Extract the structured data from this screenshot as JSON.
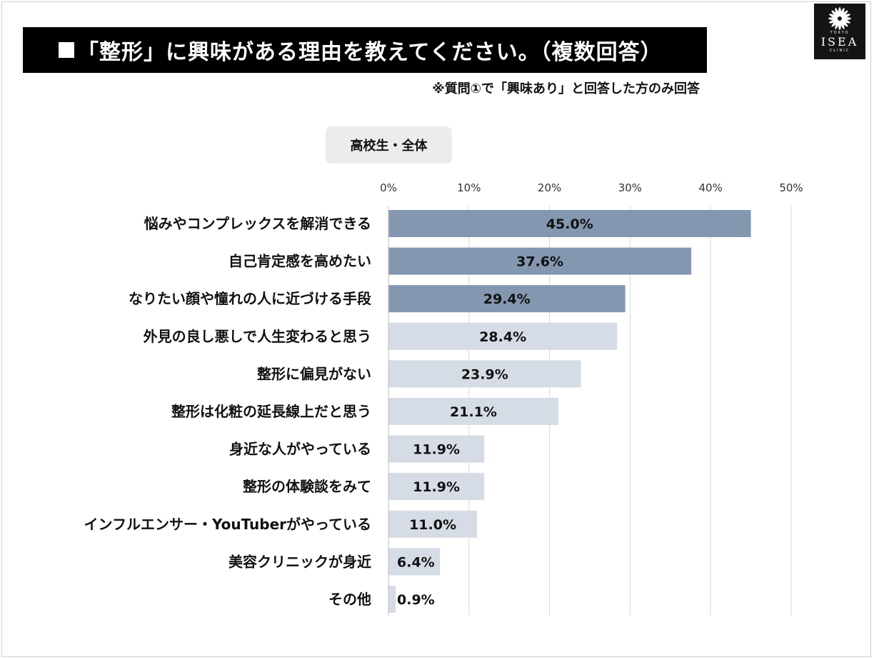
{
  "header": {
    "title": "「整形」に興味がある理由を教えてください。（複数回答）",
    "note": "※質問①で「興味あり」と回答した方のみ回答"
  },
  "logo": {
    "name": "ISEA",
    "top_text": "TOKYO",
    "bottom_text": "CLINIC"
  },
  "segment_label": "高校生・全体",
  "colors": {
    "highlight_bar": "#8497b0",
    "normal_bar": "#d6dce5",
    "grid": "#d9d9d9",
    "text": "#111111"
  },
  "chart_data": {
    "type": "bar",
    "orientation": "horizontal",
    "title": "「整形」に興味がある理由を教えてください。（複数回答）",
    "xlim": [
      0,
      50
    ],
    "x_ticks": [
      "0%",
      "10%",
      "20%",
      "30%",
      "40%",
      "50%"
    ],
    "categories": [
      "悩みやコンプレックスを解消できる",
      "自己肯定感を高めたい",
      "なりたい顔や憧れの人に近づける手段",
      "外見の良し悪しで人生変わると思う",
      "整形に偏見がない",
      "整形は化粧の延長線上だと思う",
      "身近な人がやっている",
      "整形の体験談をみて",
      "インフルエンサー・YouTuberがやっている",
      "美容クリニックが身近",
      "その他"
    ],
    "values": [
      45.0,
      37.6,
      29.4,
      28.4,
      23.9,
      21.1,
      11.9,
      11.9,
      11.0,
      6.4,
      0.9
    ],
    "value_labels": [
      "45.0%",
      "37.6%",
      "29.4%",
      "28.4%",
      "23.9%",
      "21.1%",
      "11.9%",
      "11.9%",
      "11.0%",
      "6.4%",
      "0.9%"
    ],
    "highlighted_top_n": 3
  }
}
